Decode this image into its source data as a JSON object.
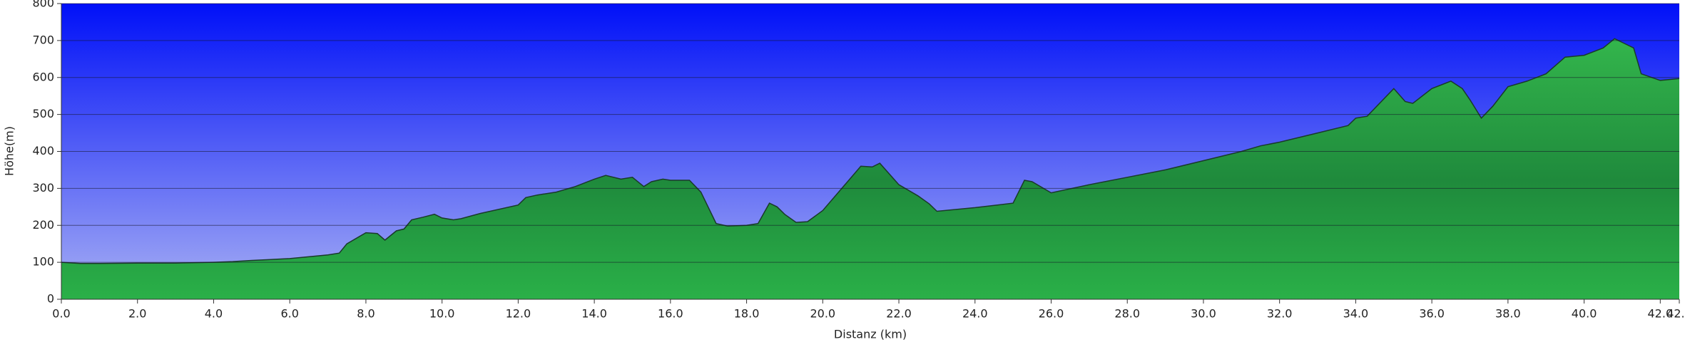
{
  "chart_data": {
    "type": "area",
    "x_label": "Distanz   (km)",
    "y_label": "Höhe(m)",
    "color": "#22a040",
    "grid": true,
    "xlim": [
      0,
      42.5
    ],
    "ylim": [
      0,
      800
    ],
    "yticks": [
      0,
      100,
      200,
      300,
      400,
      500,
      600,
      700,
      800
    ],
    "xticks": [
      {
        "value": 0,
        "label": "0.0"
      },
      {
        "value": 2,
        "label": "2.0"
      },
      {
        "value": 4,
        "label": "4.0"
      },
      {
        "value": 6,
        "label": "6.0"
      },
      {
        "value": 8,
        "label": "8.0"
      },
      {
        "value": 10,
        "label": "10.0"
      },
      {
        "value": 12,
        "label": "12.0"
      },
      {
        "value": 14,
        "label": "14.0"
      },
      {
        "value": 16,
        "label": "16.0"
      },
      {
        "value": 18,
        "label": "18.0"
      },
      {
        "value": 20,
        "label": "20.0"
      },
      {
        "value": 22,
        "label": "22.0"
      },
      {
        "value": 24,
        "label": "24.0"
      },
      {
        "value": 26,
        "label": "26.0"
      },
      {
        "value": 28,
        "label": "28.0"
      },
      {
        "value": 30,
        "label": "30.0"
      },
      {
        "value": 32,
        "label": "32.0"
      },
      {
        "value": 34,
        "label": "34.0"
      },
      {
        "value": 36,
        "label": "36.0"
      },
      {
        "value": 38,
        "label": "38.0"
      },
      {
        "value": 40,
        "label": "40.0"
      },
      {
        "value": 42,
        "label": "42.0"
      },
      {
        "value": 42.5,
        "label": "42.5"
      }
    ],
    "x": [
      0,
      0.5,
      1,
      2,
      3,
      4,
      4.5,
      5,
      6,
      7,
      7.3,
      7.5,
      8,
      8.3,
      8.5,
      8.8,
      9,
      9.2,
      9.5,
      9.8,
      10,
      10.3,
      10.5,
      11,
      12,
      12.2,
      12.5,
      13,
      13.5,
      14,
      14.3,
      14.7,
      15,
      15.3,
      15.5,
      15.8,
      16,
      16.5,
      16.8,
      17.2,
      17.5,
      18,
      18.3,
      18.6,
      18.8,
      19,
      19.3,
      19.6,
      20,
      20.5,
      21,
      21.3,
      21.5,
      22,
      22.5,
      22.8,
      23,
      24,
      25,
      25.3,
      25.5,
      26,
      27,
      28,
      29,
      30,
      31,
      31.5,
      32,
      33,
      33.8,
      34,
      34.3,
      35,
      35.3,
      35.5,
      36,
      36.5,
      36.8,
      37,
      37.3,
      37.6,
      38,
      38.5,
      39,
      39.5,
      40,
      40.5,
      40.8,
      41,
      41.3,
      41.5,
      42,
      42.5
    ],
    "values": [
      100,
      97,
      97,
      98,
      98,
      100,
      102,
      105,
      110,
      120,
      125,
      150,
      180,
      178,
      160,
      185,
      190,
      215,
      222,
      230,
      220,
      215,
      218,
      232,
      255,
      275,
      282,
      290,
      305,
      325,
      335,
      325,
      330,
      305,
      318,
      325,
      322,
      322,
      290,
      205,
      198,
      200,
      205,
      260,
      250,
      230,
      208,
      210,
      240,
      300,
      360,
      358,
      368,
      310,
      280,
      258,
      238,
      248,
      260,
      322,
      318,
      288,
      310,
      330,
      350,
      375,
      400,
      415,
      425,
      450,
      470,
      490,
      495,
      570,
      535,
      530,
      570,
      590,
      570,
      540,
      490,
      522,
      575,
      590,
      610,
      655,
      660,
      680,
      705,
      695,
      680,
      610,
      592,
      597
    ]
  }
}
